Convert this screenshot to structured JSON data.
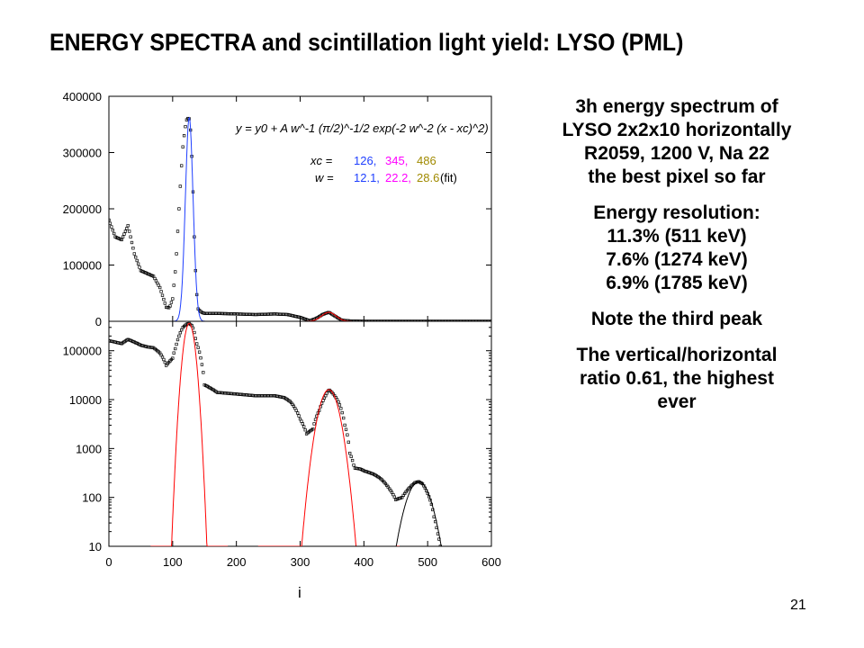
{
  "slide": {
    "title": "ENERGY SPECTRA and scintillation light yield: LYSO (PML)",
    "page_number": "21"
  },
  "notes": {
    "block1": [
      "3h energy spectrum of",
      "LYSO 2x2x10 horizontally",
      "R2059, 1200 V, Na 22",
      "the best pixel so far"
    ],
    "block2": [
      "Energy resolution:",
      "11.3% (511 keV)",
      "7.6% (1274 keV)",
      "6.9% (1785 keV)"
    ],
    "block3": [
      "Note the third peak"
    ],
    "block4": [
      "The vertical/horizontal",
      "ratio 0.61, the highest",
      "ever"
    ]
  },
  "chart_data": [
    {
      "type": "scatter",
      "scale": "linear",
      "xlim": [
        0,
        600
      ],
      "ylim": [
        0,
        400000
      ],
      "y_ticks": [
        "0",
        "100000",
        "200000",
        "300000",
        "400000"
      ],
      "grid": false,
      "annotation": {
        "formula": "y = y0 + A w^-1 (π/2)^-1/2 exp(-2 w^-2 (x - xc)^2)",
        "xc_label": "xc =",
        "w_label": "w =",
        "xc_values": [
          "126,",
          "345,",
          "486"
        ],
        "w_values": [
          "12.1,",
          "22.2,",
          "28.6"
        ],
        "w_suffix": "(fit)",
        "value_colors": [
          "#1f3fff",
          "#ff00ff",
          "#a08a00"
        ]
      },
      "series": [
        {
          "color": "#000000",
          "style": "markers",
          "x": [
            0,
            10,
            20,
            30,
            40,
            50,
            60,
            70,
            80,
            90,
            95,
            100,
            105,
            110,
            113,
            116,
            119,
            122,
            125,
            126,
            128,
            131,
            134,
            137,
            140,
            145,
            150,
            170,
            200,
            230,
            260,
            280,
            300,
            315,
            325,
            335,
            345,
            355,
            365,
            380,
            400,
            450,
            500,
            600
          ],
          "y": [
            180000,
            150000,
            145000,
            170000,
            120000,
            90000,
            85000,
            80000,
            60000,
            25000,
            24000,
            40000,
            100000,
            200000,
            260000,
            310000,
            340000,
            358000,
            362000,
            360000,
            340000,
            270000,
            150000,
            60000,
            22000,
            16000,
            14000,
            14000,
            13000,
            12000,
            13000,
            12000,
            7000,
            1000,
            5000,
            12000,
            16000,
            9000,
            2000,
            500,
            0,
            0,
            0,
            0
          ]
        },
        {
          "color": "#1f3fff",
          "style": "line",
          "peak_center": 126,
          "peak_height": 362000,
          "fwhm": 12.1
        },
        {
          "color": "#ff0000",
          "style": "line",
          "peak_center": 345,
          "peak_height": 16000,
          "fwhm": 22.2
        }
      ]
    },
    {
      "type": "scatter",
      "scale": "log",
      "xlim": [
        0,
        600
      ],
      "ylim": [
        10,
        400000
      ],
      "x_ticks": [
        "0",
        "100",
        "200",
        "300",
        "400",
        "500",
        "600"
      ],
      "y_ticks": [
        "10",
        "100",
        "1000",
        "10000",
        "100000"
      ],
      "xlabel": "i",
      "grid": false,
      "series": [
        {
          "color": "#000000",
          "style": "markers",
          "x": [
            0,
            10,
            20,
            30,
            40,
            50,
            60,
            70,
            80,
            90,
            100,
            105,
            110,
            116,
            122,
            126,
            131,
            137,
            145,
            150,
            170,
            200,
            230,
            260,
            275,
            285,
            300,
            310,
            320,
            330,
            340,
            345,
            350,
            360,
            370,
            378,
            385,
            395,
            400,
            415,
            425,
            440,
            450,
            460,
            470,
            480,
            486,
            492,
            500,
            505,
            510,
            515,
            520
          ],
          "y": [
            160000,
            150000,
            140000,
            170000,
            150000,
            130000,
            120000,
            115000,
            90000,
            50000,
            70000,
            120000,
            200000,
            300000,
            350000,
            362000,
            320000,
            150000,
            60000,
            20000,
            14000,
            13000,
            12000,
            12000,
            11000,
            9000,
            4000,
            2000,
            2500,
            6000,
            12000,
            16000,
            14000,
            9000,
            3000,
            800,
            400,
            380,
            350,
            300,
            250,
            150,
            90,
            100,
            150,
            200,
            210,
            190,
            120,
            80,
            40,
            20,
            10
          ]
        },
        {
          "color": "#ff0000",
          "style": "line",
          "peak_center": 126,
          "peak_height": 362000,
          "fwhm": 12.1
        },
        {
          "color": "#ff0000",
          "style": "line",
          "peak_center": 345,
          "peak_height": 16000,
          "fwhm": 22.2
        },
        {
          "color": "#000000",
          "style": "line",
          "peak_center": 486,
          "peak_height": 210,
          "fwhm": 28.6
        }
      ]
    }
  ]
}
